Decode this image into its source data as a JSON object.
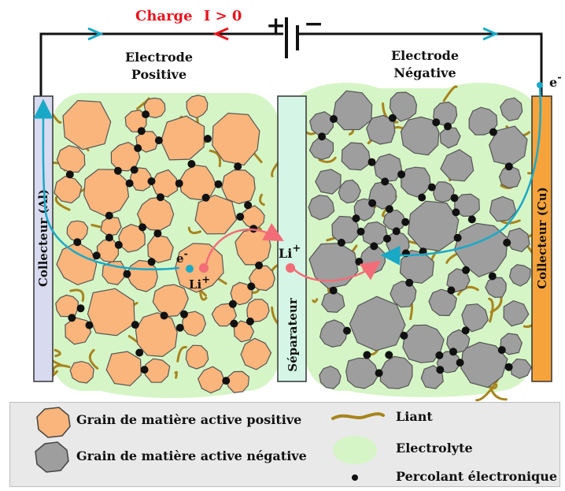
{
  "header": {
    "charge_label": "Charge",
    "current_label": "I > 0",
    "plus_sign": "+",
    "minus_sign": "−"
  },
  "electrodes": {
    "positive_line1": "Electrode",
    "positive_line2": "Positive",
    "negative_line1": "Electrode",
    "negative_line2": "Négative"
  },
  "components": {
    "collector_left": "Collecteur (Al)",
    "collector_right": "Collecteur (Cu)",
    "separator": "Séparateur"
  },
  "species": {
    "electron": "e",
    "electron_charge": "-",
    "lithium": "Li",
    "lithium_charge": "+"
  },
  "legend": {
    "positive_grain": "Grain de matière active positive",
    "negative_grain": "Grain de matière active négative",
    "binder": "Liant",
    "electrolyte": "Electrolyte",
    "conductor": "Percolant électronique"
  },
  "colors": {
    "positive_grain": "#f9b57b",
    "negative_grain": "#9e9e9e",
    "binder": "#a8841e",
    "electrolyte": "#d6f5c6",
    "collector_al": "#d8daf0",
    "collector_cu": "#f7a33c",
    "separator": "#d5f6e6",
    "electron_path": "#19a9c7",
    "lithium_path": "#f26d78",
    "charge_text": "#e8141d"
  }
}
